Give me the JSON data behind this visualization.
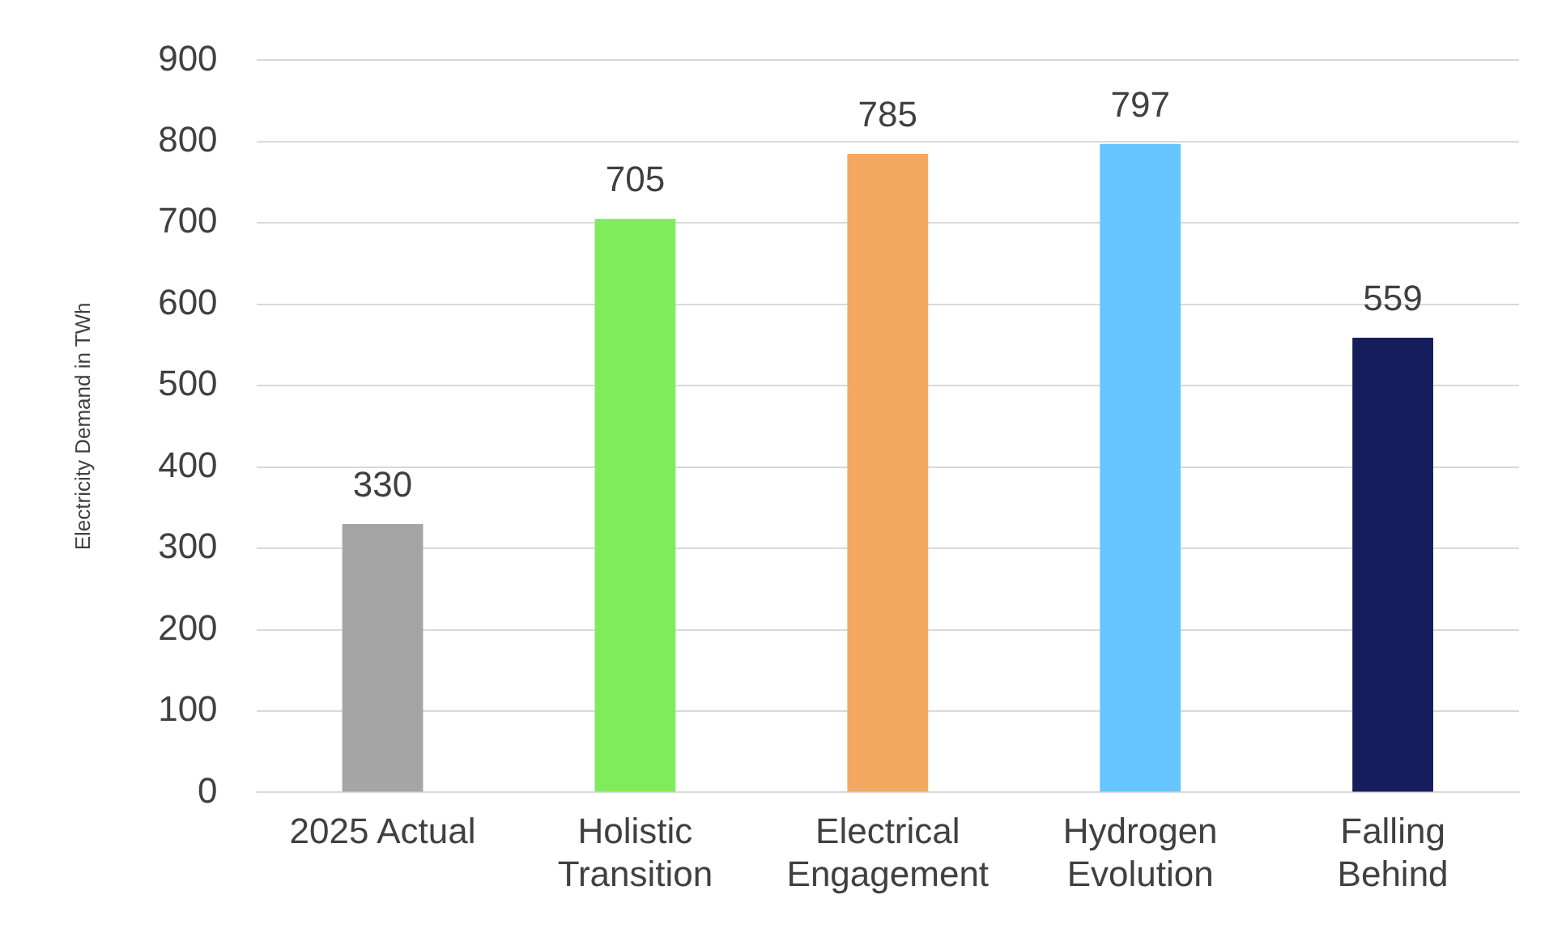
{
  "chart_data": {
    "type": "bar",
    "ylabel": "Electricity Demand in TWh",
    "categories": [
      "2025 Actual",
      "Holistic Transition",
      "Electrical Engagement",
      "Hydrogen Evolution",
      "Falling Behind"
    ],
    "values": [
      330,
      705,
      785,
      797,
      559
    ],
    "colors": [
      "#a5a5a5",
      "#7fec5a",
      "#f4a862",
      "#66c6ff",
      "#141e5c"
    ],
    "ylim": [
      0,
      900
    ],
    "yticks": [
      0,
      100,
      200,
      300,
      400,
      500,
      600,
      700,
      800,
      900
    ],
    "grid": "y",
    "data_labels": true,
    "legend": false
  }
}
